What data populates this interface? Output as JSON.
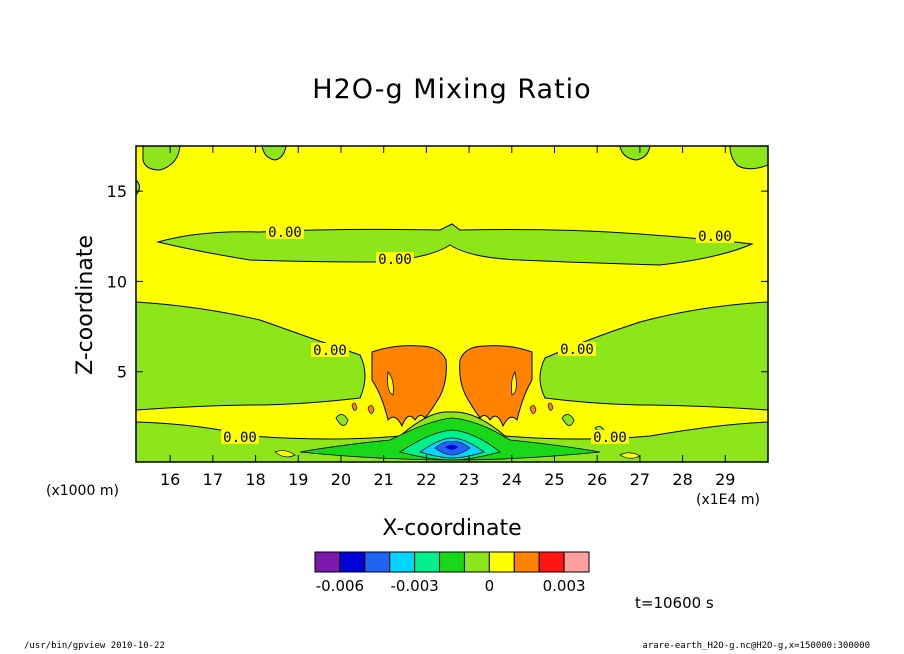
{
  "chart_data": {
    "type": "contour",
    "title": "H2O-g Mixing Ratio",
    "xlabel": "X-coordinate",
    "ylabel": "Z-coordinate",
    "x_unit_label": "(x1E4 m)",
    "y_unit_label": "(x1000 m)",
    "xlim": [
      15.2,
      30.0
    ],
    "ylim": [
      0,
      17.5
    ],
    "x_ticks": [
      16,
      17,
      18,
      19,
      20,
      21,
      22,
      23,
      24,
      25,
      26,
      27,
      28,
      29
    ],
    "y_ticks": [
      5,
      10,
      15
    ],
    "contour_labels": [
      "0.00",
      "0.00",
      "0.00",
      "0.00",
      "0.00",
      "0.00",
      "0.00",
      "0.00"
    ],
    "colorbar": {
      "colors": [
        "#7b19aa",
        "#0000d8",
        "#1f64f2",
        "#00d6ff",
        "#00f08c",
        "#19d819",
        "#8ce619",
        "#ffff00",
        "#ff8300",
        "#ff1414",
        "#ffa0a0"
      ],
      "tick_labels": [
        "-0.006",
        "-0.003",
        "0",
        "0.003"
      ],
      "tick_values": [
        -0.006,
        -0.003,
        0,
        0.003
      ],
      "levels": [
        -0.007,
        -0.006,
        -0.005,
        -0.004,
        -0.003,
        -0.002,
        -0.001,
        0,
        0.001,
        0.002,
        0.003,
        0.004
      ]
    }
  },
  "annotations": {
    "time": "t=10600 s",
    "footer_left": "/usr/bin/gpview   2010-10-22",
    "footer_right": "arare-earth_H2O-g.nc@H2O-g,x=150000:300000"
  }
}
